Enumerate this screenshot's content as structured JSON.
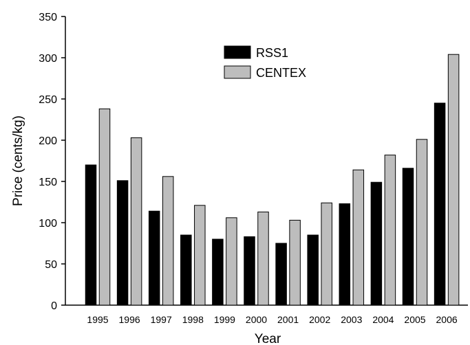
{
  "chart_data": {
    "type": "bar",
    "title": "",
    "xlabel": "Year",
    "ylabel": "Price (cents/kg)",
    "ylim": [
      0,
      350
    ],
    "yticks": [
      0,
      50,
      100,
      150,
      200,
      250,
      300,
      350
    ],
    "grid": false,
    "legend_position": "top-center",
    "categories": [
      "1995",
      "1996",
      "1997",
      "1998",
      "1999",
      "2000",
      "2001",
      "2002",
      "2003",
      "2004",
      "2005",
      "2006"
    ],
    "series": [
      {
        "name": "RSS1",
        "color": "#000000",
        "values": [
          170,
          151,
          114,
          85,
          80,
          83,
          75,
          85,
          123,
          149,
          166,
          245
        ]
      },
      {
        "name": "CENTEX",
        "color": "#bdbdbd",
        "values": [
          238,
          203,
          156,
          121,
          106,
          113,
          103,
          124,
          164,
          182,
          201,
          304
        ]
      }
    ]
  }
}
